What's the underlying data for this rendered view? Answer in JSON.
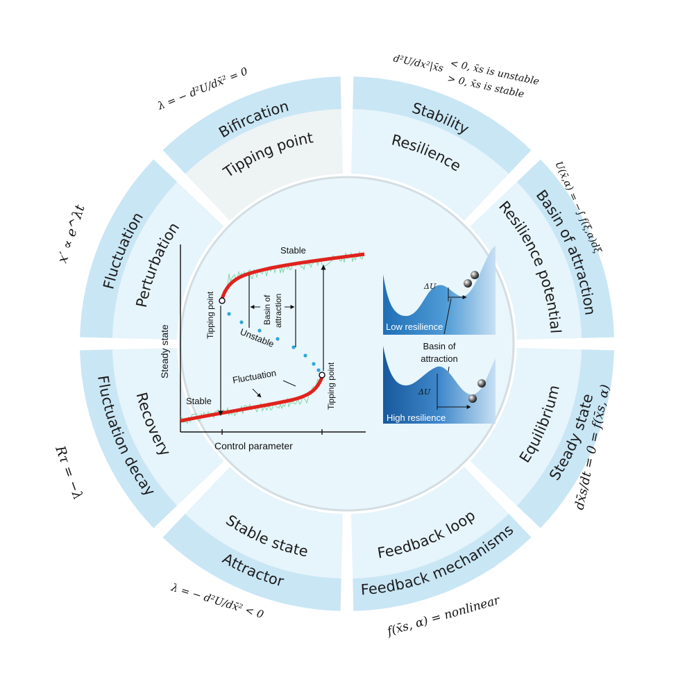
{
  "colors": {
    "outer_ring": "#c9e6f5",
    "inner_ring": "#e6f4fb",
    "center": "#e9f6fc",
    "highlight_band": "#eef3f4",
    "curve": "#e0231c",
    "noise": "#7fd6a4",
    "unstable_dots": "#2ea6d8",
    "well_dark": "#1f6fb6",
    "well_light": "#bcd9ef"
  },
  "segments": [
    {
      "outer": "Stability",
      "inner": "Resilience"
    },
    {
      "outer": "Basin of attraction",
      "inner": "Resilience potential"
    },
    {
      "outer": "Steady state",
      "inner": "Equilibrium"
    },
    {
      "outer": "Feedback mechanisms",
      "inner": "Feedback loop"
    },
    {
      "outer": "Attractor",
      "inner": "Stable state"
    },
    {
      "outer": "Fluctuation decay",
      "inner": "Recovery"
    },
    {
      "outer": "Fluctuation",
      "inner": "Perturbation"
    },
    {
      "outer": "Bifircation",
      "inner": "Tipping point"
    }
  ],
  "equations": {
    "stability_lhs": "d²U/dx²|x̄s",
    "stability_line1": "< 0, x̄s is unstable",
    "stability_line2": "> 0, x̄s is stable",
    "basin": "U(x̄,α) = −∫ f(ξ,α)dξ",
    "steady_state": "dx̄s/dt = 0 = f(x̄s, α)",
    "feedback": "f(x̄s, α) = nonlinear",
    "attractor": "λ = − d²U/dx̄² < 0",
    "fluctuation_decay": "Rτ = −λ",
    "fluctuation": "x′ ∝ e^λt",
    "bifurcation": "λ = − d²U/dx̄² = 0"
  },
  "bifurcation_plot": {
    "x_label": "Control parameter",
    "y_label": "Steady state",
    "stable_upper": "Stable",
    "stable_lower": "Stable",
    "unstable": "Unstable",
    "tipping_left": "Tipping point",
    "tipping_right": "Tipping point",
    "basin_line1": "Basin of",
    "basin_line2": "attraction",
    "fluctuation": "Fluctuation"
  },
  "potential_panels": {
    "low": "Low resilience",
    "high": "High resilience",
    "delta_u": "ΔU",
    "basin_line1": "Basin of",
    "basin_line2": "attraction"
  }
}
